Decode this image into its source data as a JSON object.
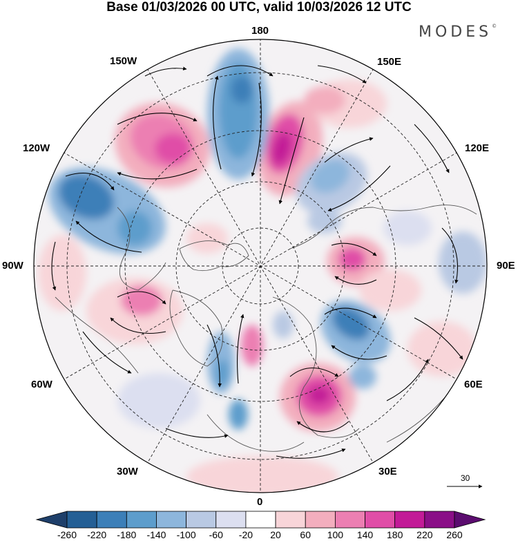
{
  "header": {
    "title": "Base 01/03/2026 00 UTC, valid 10/03/2026 12 UTC",
    "brand": "MODES",
    "brand_mark": "©"
  },
  "map": {
    "projection": "north-polar-stereographic",
    "lon_labels": {
      "l180": "180",
      "l150W": "150W",
      "l150E": "150E",
      "l120W": "120W",
      "l120E": "120E",
      "l90W": "90W",
      "l90E": "90E",
      "l60W": "60W",
      "l60E": "60E",
      "l30W": "30W",
      "l30E": "30E",
      "l0": "0"
    },
    "reference_vector": {
      "label": "30"
    }
  },
  "colorbar": {
    "labels": [
      "-260",
      "-220",
      "-180",
      "-140",
      "-100",
      "-60",
      "-20",
      "20",
      "60",
      "100",
      "140",
      "180",
      "220",
      "260"
    ],
    "colors": [
      "#1e3f6a",
      "#245f95",
      "#3c7fb8",
      "#5d9dcc",
      "#8db6dc",
      "#b9c9e3",
      "#dcdff0",
      "#ffffff",
      "#f8d5d9",
      "#f3aebe",
      "#ec7fb2",
      "#e04ea7",
      "#c21b97",
      "#8a0f87",
      "#5b0c6f"
    ]
  },
  "colors": {
    "outline": "#000000",
    "coast": "#555555",
    "grid": "#222222"
  }
}
